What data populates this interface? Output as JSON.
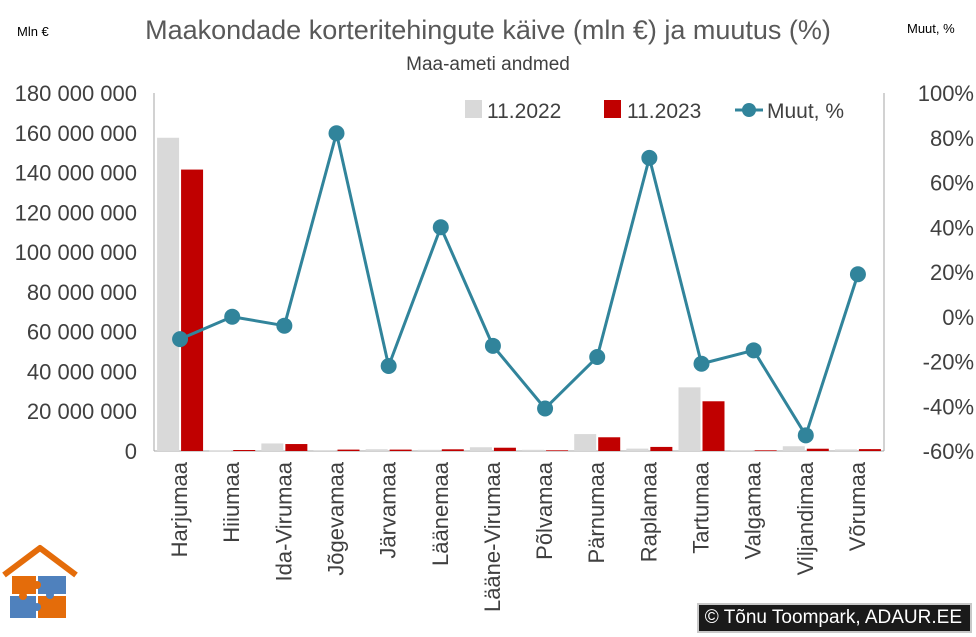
{
  "chart_data": {
    "type": "bar",
    "title": "Maakondade korteritehingute käive (mln €) ja muutus (%)",
    "subtitle": "Maa-ameti andmed",
    "left_unit": "Mln €",
    "right_unit": "Muut, %",
    "categories": [
      "Harjumaa",
      "Hiiumaa",
      "Ida-Virumaa",
      "Jõgevamaa",
      "Järvamaa",
      "Läänemaa",
      "Lääne-Virumaa",
      "Põlvamaa",
      "Pärnumaa",
      "Raplamaa",
      "Tartumaa",
      "Valgamaa",
      "Viljandimaa",
      "Võrumaa"
    ],
    "series": [
      {
        "name": "11.2022",
        "axis": "left",
        "color": "#d9d9d9",
        "values": [
          157500000,
          150000,
          3800000,
          400000,
          900000,
          600000,
          1900000,
          600000,
          8500000,
          1200000,
          32000000,
          400000,
          2400000,
          800000
        ]
      },
      {
        "name": "11.2023",
        "axis": "left",
        "color": "#c00000",
        "values": [
          141500000,
          500000,
          3500000,
          700000,
          700000,
          850000,
          1650000,
          350000,
          6900000,
          2050000,
          25000000,
          350000,
          1150000,
          950000
        ]
      },
      {
        "name": "Muut, %",
        "axis": "right",
        "type": "line",
        "color": "#31849b",
        "values": [
          -10,
          0,
          -4,
          82,
          -22,
          40,
          -13,
          -41,
          -18,
          71,
          -21,
          -15,
          -53,
          19
        ]
      }
    ],
    "y_left": {
      "min": 0,
      "max": 180000000,
      "step": 20000000,
      "tick_labels": [
        "0",
        "20 000 000",
        "40 000 000",
        "60 000 000",
        "80 000 000",
        "100 000 000",
        "120 000 000",
        "140 000 000",
        "160 000 000",
        "180 000 000"
      ]
    },
    "y_right": {
      "min": -60,
      "max": 100,
      "step": 20,
      "tick_labels": [
        "-60%",
        "-40%",
        "-20%",
        "0%",
        "20%",
        "40%",
        "60%",
        "80%",
        "100%"
      ]
    },
    "grid": false,
    "legend_position": "top-right"
  },
  "credit": "Tõnu Toompark, ADAUR.EE",
  "copyright_symbol": "©"
}
